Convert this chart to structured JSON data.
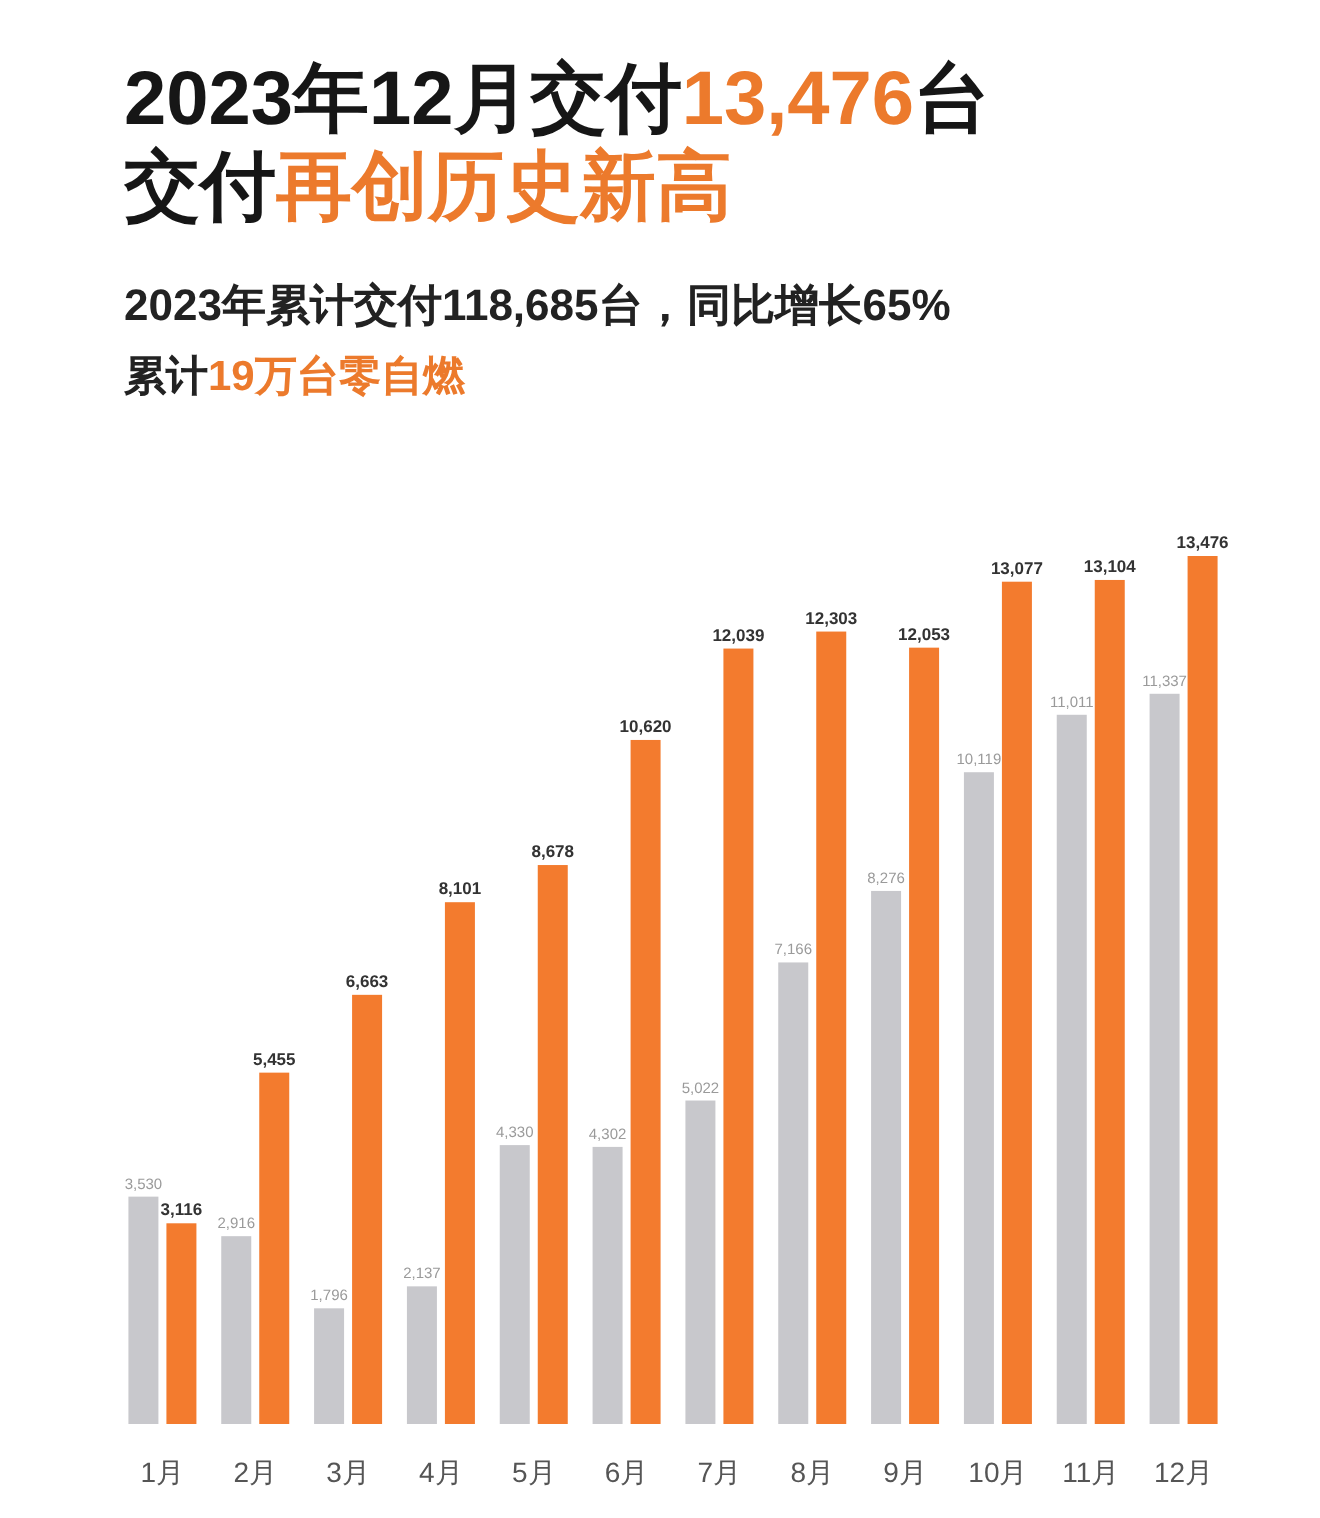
{
  "chart_data": {
    "type": "bar",
    "title": "2023年12月交付**13,476**台",
    "subtitle": "交付**再创历史新高**",
    "annotations": [
      "2023年累计交付118,685台，同比增长65%",
      "累计**19万台零自燃**"
    ],
    "categories": [
      "1月",
      "2月",
      "3月",
      "4月",
      "5月",
      "6月",
      "7月",
      "8月",
      "9月",
      "10月",
      "11月",
      "12月"
    ],
    "series": [
      {
        "color": "#c8c8cc",
        "values": [
          3530,
          2916,
          1796,
          2137,
          4330,
          4302,
          5022,
          7166,
          8276,
          10119,
          11011,
          11337
        ],
        "value_labels": [
          "3,530",
          "2,916",
          "1,796",
          "2,137",
          "4,330",
          "4,302",
          "5,022",
          "7,166",
          "8,276",
          "10,119",
          "11,011",
          "11,337"
        ]
      },
      {
        "color": "#f37b2e",
        "values": [
          3116,
          5455,
          6663,
          8101,
          8678,
          10620,
          12039,
          12303,
          12053,
          13077,
          13104,
          13476
        ],
        "value_labels": [
          "3,116",
          "5,455",
          "6,663",
          "8,101",
          "8,678",
          "10,620",
          "12,039",
          "12,303",
          "12,053",
          "13,077",
          "13,104",
          "13,476"
        ]
      }
    ]
  }
}
